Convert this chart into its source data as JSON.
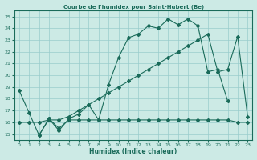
{
  "title": "Courbe de l'humidex pour Saint-Hubert (Be)",
  "xlabel": "Humidex (Indice chaleur)",
  "bg_color": "#cceae5",
  "grid_color": "#99cccc",
  "line_color": "#1a6b5a",
  "xlim": [
    -0.5,
    23.5
  ],
  "ylim": [
    14.5,
    25.5
  ],
  "xticks": [
    0,
    1,
    2,
    3,
    4,
    5,
    6,
    7,
    8,
    9,
    10,
    11,
    12,
    13,
    14,
    15,
    16,
    17,
    18,
    19,
    20,
    21,
    22,
    23
  ],
  "yticks": [
    15,
    16,
    17,
    18,
    19,
    20,
    21,
    22,
    23,
    24,
    25
  ],
  "line1_x": [
    0,
    1,
    2,
    3,
    4,
    5,
    6,
    7,
    8,
    9,
    10,
    11,
    12,
    13,
    14,
    15,
    16,
    17,
    18,
    19,
    20,
    21
  ],
  "line1_y": [
    18.7,
    16.8,
    14.9,
    16.3,
    15.3,
    16.3,
    16.7,
    17.5,
    16.2,
    19.2,
    21.5,
    23.2,
    23.5,
    24.2,
    24.0,
    24.8,
    24.3,
    24.8,
    24.2,
    20.3,
    20.5,
    17.8
  ],
  "line2_x": [
    2,
    3,
    4,
    5,
    6,
    7,
    8,
    9,
    10,
    11,
    12,
    13,
    14,
    15,
    16,
    17,
    18,
    19,
    20,
    21,
    22,
    23
  ],
  "line2_y": [
    14.9,
    16.3,
    15.5,
    16.2,
    16.2,
    16.2,
    16.2,
    16.2,
    16.2,
    16.2,
    16.2,
    16.2,
    16.2,
    16.2,
    16.2,
    16.2,
    16.2,
    16.2,
    16.2,
    16.2,
    16.0,
    16.0
  ],
  "line3_x": [
    0,
    1,
    2,
    3,
    4,
    5,
    6,
    7,
    8,
    9,
    10,
    11,
    12,
    13,
    14,
    15,
    16,
    17,
    18,
    19,
    20,
    21,
    22,
    23
  ],
  "line3_y": [
    16.0,
    16.0,
    16.0,
    16.2,
    16.2,
    16.5,
    17.0,
    17.5,
    18.0,
    18.5,
    19.0,
    19.5,
    20.0,
    20.5,
    21.0,
    21.5,
    22.0,
    22.5,
    23.0,
    23.5,
    20.3,
    20.5,
    23.3,
    16.5
  ]
}
